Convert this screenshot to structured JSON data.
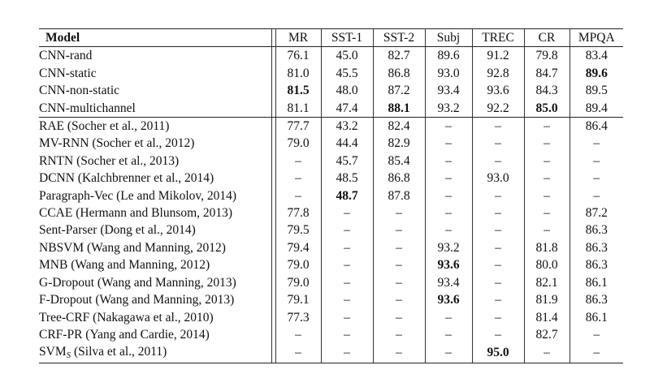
{
  "table": {
    "headers": {
      "model": "Model",
      "mr": "MR",
      "sst1": "SST-1",
      "sst2": "SST-2",
      "subj": "Subj",
      "trec": "TREC",
      "cr": "CR",
      "mpqa": "MPQA"
    },
    "group1": [
      {
        "model": "CNN-rand",
        "mr": "76.1",
        "sst1": "45.0",
        "sst2": "82.7",
        "subj": "89.6",
        "trec": "91.2",
        "cr": "79.8",
        "mpqa": "83.4"
      },
      {
        "model": "CNN-static",
        "mr": "81.0",
        "sst1": "45.5",
        "sst2": "86.8",
        "subj": "93.0",
        "trec": "92.8",
        "cr": "84.7",
        "mpqa": "89.6"
      },
      {
        "model": "CNN-non-static",
        "mr": "81.5",
        "sst1": "48.0",
        "sst2": "87.2",
        "subj": "93.4",
        "trec": "93.6",
        "cr": "84.3",
        "mpqa": "89.5"
      },
      {
        "model": "CNN-multichannel",
        "mr": "81.1",
        "sst1": "47.4",
        "sst2": "88.1",
        "subj": "93.2",
        "trec": "92.2",
        "cr": "85.0",
        "mpqa": "89.4"
      }
    ],
    "group2": [
      {
        "model": "RAE (Socher et al., 2011)",
        "mr": "77.7",
        "sst1": "43.2",
        "sst2": "82.4",
        "subj": "–",
        "trec": "–",
        "cr": "–",
        "mpqa": "86.4"
      },
      {
        "model": "MV-RNN (Socher et al., 2012)",
        "mr": "79.0",
        "sst1": "44.4",
        "sst2": "82.9",
        "subj": "–",
        "trec": "–",
        "cr": "–",
        "mpqa": "–"
      },
      {
        "model": "RNTN (Socher et al., 2013)",
        "mr": "–",
        "sst1": "45.7",
        "sst2": "85.4",
        "subj": "–",
        "trec": "–",
        "cr": "–",
        "mpqa": "–"
      },
      {
        "model": "DCNN (Kalchbrenner et al., 2014)",
        "mr": "–",
        "sst1": "48.5",
        "sst2": "86.8",
        "subj": "–",
        "trec": "93.0",
        "cr": "–",
        "mpqa": "–"
      },
      {
        "model": "Paragraph-Vec (Le and Mikolov, 2014)",
        "mr": "–",
        "sst1": "48.7",
        "sst2": "87.8",
        "subj": "–",
        "trec": "–",
        "cr": "–",
        "mpqa": "–"
      },
      {
        "model": "CCAE (Hermann and Blunsom, 2013)",
        "mr": "77.8",
        "sst1": "–",
        "sst2": "–",
        "subj": "–",
        "trec": "–",
        "cr": "–",
        "mpqa": "87.2"
      },
      {
        "model": "Sent-Parser (Dong et al., 2014)",
        "mr": "79.5",
        "sst1": "–",
        "sst2": "–",
        "subj": "–",
        "trec": "–",
        "cr": "–",
        "mpqa": "86.3"
      },
      {
        "model": "NBSVM (Wang and Manning, 2012)",
        "mr": "79.4",
        "sst1": "–",
        "sst2": "–",
        "subj": "93.2",
        "trec": "–",
        "cr": "81.8",
        "mpqa": "86.3"
      },
      {
        "model": "MNB (Wang and Manning, 2012)",
        "mr": "79.0",
        "sst1": "–",
        "sst2": "–",
        "subj": "93.6",
        "trec": "–",
        "cr": "80.0",
        "mpqa": "86.3"
      },
      {
        "model": "G-Dropout (Wang and Manning, 2013)",
        "mr": "79.0",
        "sst1": "–",
        "sst2": "–",
        "subj": "93.4",
        "trec": "–",
        "cr": "82.1",
        "mpqa": "86.1"
      },
      {
        "model": "F-Dropout (Wang and Manning, 2013)",
        "mr": "79.1",
        "sst1": "–",
        "sst2": "–",
        "subj": "93.6",
        "trec": "–",
        "cr": "81.9",
        "mpqa": "86.3"
      },
      {
        "model": "Tree-CRF (Nakagawa et al., 2010)",
        "mr": "77.3",
        "sst1": "–",
        "sst2": "–",
        "subj": "–",
        "trec": "–",
        "cr": "81.4",
        "mpqa": "86.1"
      },
      {
        "model": "CRF-PR (Yang and Cardie, 2014)",
        "mr": "–",
        "sst1": "–",
        "sst2": "–",
        "subj": "–",
        "trec": "–",
        "cr": "82.7",
        "mpqa": "–"
      },
      {
        "model": "SVM",
        "model_sub": "S",
        "model_rest": " (Silva et al., 2011)",
        "mr": "–",
        "sst1": "–",
        "sst2": "–",
        "subj": "–",
        "trec": "95.0",
        "cr": "–",
        "mpqa": "–"
      }
    ]
  }
}
